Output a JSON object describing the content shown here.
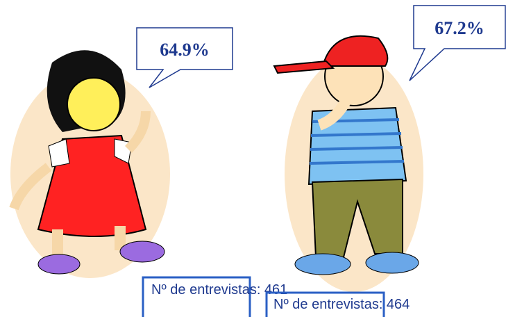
{
  "figures": [
    {
      "percent": "64.9%",
      "caption": "Nº de entrevistas: 461"
    },
    {
      "percent": "67.2%",
      "caption": "Nº de entrevistas: 464"
    }
  ]
}
